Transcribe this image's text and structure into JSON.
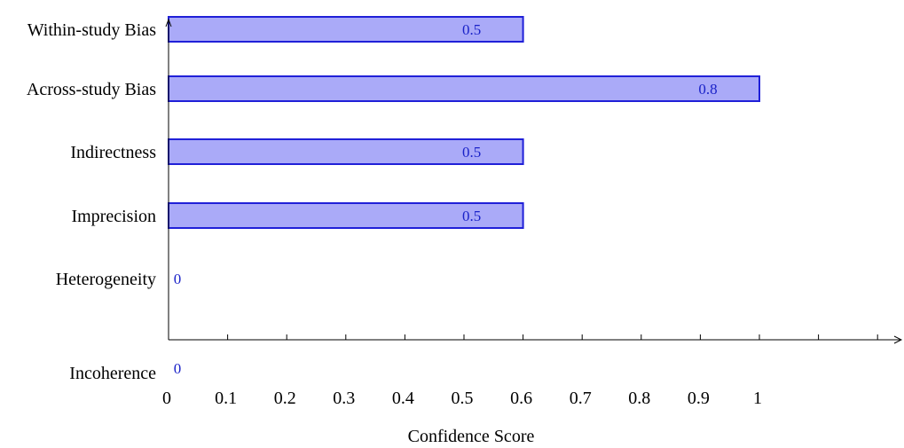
{
  "chart_data": {
    "type": "bar",
    "orientation": "horizontal",
    "categories": [
      "Within-study Bias",
      "Across-study Bias",
      "Indirectness",
      "Imprecision",
      "Heterogeneity",
      "Incoherence"
    ],
    "values": [
      0.5,
      0.8,
      0.5,
      0.5,
      0,
      0
    ],
    "bar_extent": [
      0.6,
      1.0,
      0.6,
      0.6,
      0,
      0
    ],
    "data_labels": [
      "0.5",
      "0.8",
      "0.5",
      "0.5",
      "0",
      "0"
    ],
    "xlabel": "Confidence Score",
    "ylabel": "",
    "xlim": [
      0,
      1.2
    ],
    "x_ticks": [
      "0",
      "0.1",
      "0.2",
      "0.3",
      "0.4",
      "0.5",
      "0.6",
      "0.7",
      "0.8",
      "0.9",
      "1"
    ],
    "grid": false,
    "legend": "none",
    "colors": {
      "bar_fill": "#aaaaf8",
      "bar_stroke": "#2020d8",
      "label": "#1a22c8",
      "axis": "#000000"
    }
  }
}
